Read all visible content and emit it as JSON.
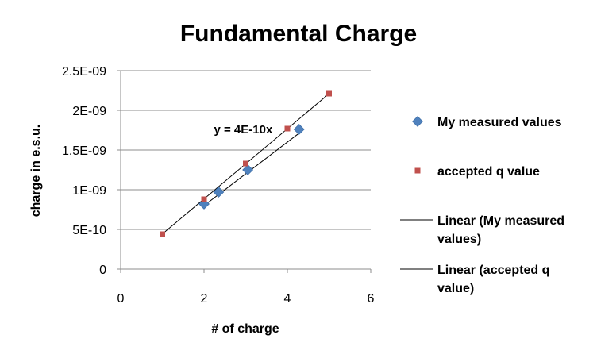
{
  "chart_data": {
    "type": "scatter",
    "title": "Fundamental Charge",
    "xlabel": "# of charge",
    "ylabel": "charge in e.s.u.",
    "xlim": [
      0,
      6
    ],
    "ylim": [
      0,
      2.5e-09
    ],
    "x_ticks": [
      0,
      2,
      4,
      6
    ],
    "x_tick_labels": [
      "0",
      "2",
      "4",
      "6"
    ],
    "y_ticks": [
      0,
      5e-10,
      1e-09,
      1.5e-09,
      2e-09,
      2.5e-09
    ],
    "y_tick_labels": [
      "0",
      "5E-10",
      "1E-09",
      "1.5E-09",
      "2E-09",
      "2.5E-09"
    ],
    "grid": "horizontal",
    "legend_position": "right",
    "series": [
      {
        "name": "My measured values",
        "marker": "diamond",
        "color": "#4F81BD",
        "x": [
          2.0,
          2.35,
          3.05,
          4.28
        ],
        "y": [
          8.2e-10,
          9.7e-10,
          1.25e-09,
          1.76e-09
        ]
      },
      {
        "name": "accepted q value",
        "marker": "square",
        "color": "#C0504D",
        "x": [
          1,
          2,
          3,
          4,
          5
        ],
        "y": [
          4.4e-10,
          8.8e-10,
          1.33e-09,
          1.77e-09,
          2.21e-09
        ]
      }
    ],
    "trendlines": [
      {
        "name": "Linear (My measured values)",
        "slope": 4e-10,
        "x_range": [
          2.0,
          4.28
        ],
        "color": "#000000"
      },
      {
        "name": "Linear (accepted q value)",
        "slope": 4.42e-10,
        "x_range": [
          1,
          5
        ],
        "color": "#000000"
      }
    ],
    "annotations": [
      {
        "text": "y = 4E-10x",
        "x": 3.0,
        "y": 1.74e-09
      }
    ],
    "legend": [
      {
        "label": "My measured values",
        "symbol": "diamond",
        "color": "#4F81BD"
      },
      {
        "label": "accepted q value",
        "symbol": "square",
        "color": "#C0504D"
      },
      {
        "label_lines": [
          "Linear (My measured",
          "values)"
        ],
        "symbol": "line",
        "color": "#000000"
      },
      {
        "label_lines": [
          "Linear (accepted q",
          "value)"
        ],
        "symbol": "line",
        "color": "#000000"
      }
    ]
  }
}
